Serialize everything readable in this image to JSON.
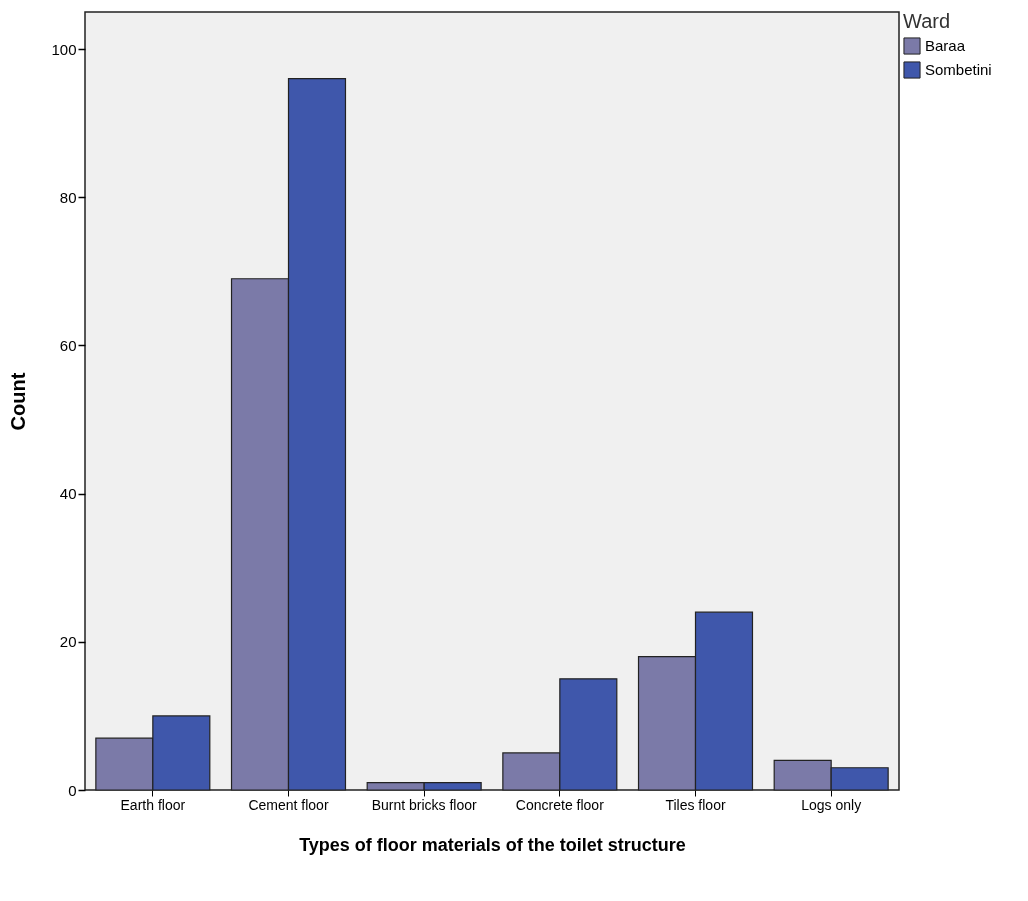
{
  "chart_data": {
    "type": "bar",
    "xlabel": "Types of floor materials of the toilet structure",
    "ylabel": "Count",
    "legend_title": "Ward",
    "categories": [
      "Earth floor",
      "Cement floor",
      "Burnt bricks floor",
      "Concrete floor",
      "Tiles floor",
      "Logs only"
    ],
    "series": [
      {
        "name": "Baraa",
        "color": "#7b7aa8",
        "values": [
          7,
          69,
          1,
          5,
          18,
          4
        ]
      },
      {
        "name": "Sombetini",
        "color": "#3f57ab",
        "values": [
          10,
          96,
          1,
          15,
          24,
          3
        ]
      }
    ],
    "ylim": [
      0,
      105
    ],
    "yticks": [
      0,
      20,
      40,
      60,
      80,
      100
    ],
    "grid": false,
    "legend": "top right"
  }
}
